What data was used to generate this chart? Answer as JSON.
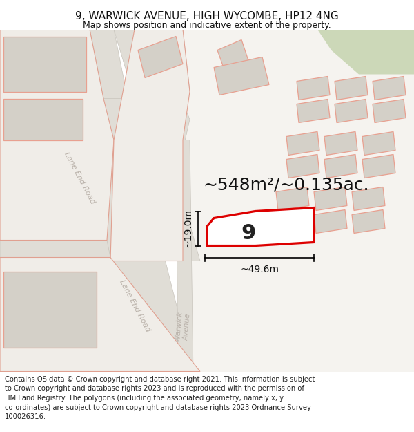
{
  "title_line1": "9, WARWICK AVENUE, HIGH WYCOMBE, HP12 4NG",
  "title_line2": "Map shows position and indicative extent of the property.",
  "footer_text": "Contains OS data © Crown copyright and database right 2021. This information is subject to Crown copyright and database rights 2023 and is reproduced with the permission of HM Land Registry. The polygons (including the associated geometry, namely x, y co-ordinates) are subject to Crown copyright and database rights 2023 Ordnance Survey 100026316.",
  "area_label": "~548m²/~0.135ac.",
  "property_number": "9",
  "width_label": "~49.6m",
  "height_label": "~19.0m",
  "map_bg": "#f0ede8",
  "road_fill": "#e0ddd6",
  "road_edge": "#c8c4bc",
  "building_fill": "#d4d0c8",
  "building_edge": "#e8a090",
  "red_outline": "#dd0000",
  "green_fill": "#c8d4b8",
  "white_block": "#f8f6f2",
  "road_label_color": "#b8b0a8",
  "dim_color": "#111111",
  "title_fs": 11,
  "sub_fs": 9,
  "footer_fs": 7.2,
  "area_fs": 18,
  "num_fs": 22,
  "dim_fs": 10
}
